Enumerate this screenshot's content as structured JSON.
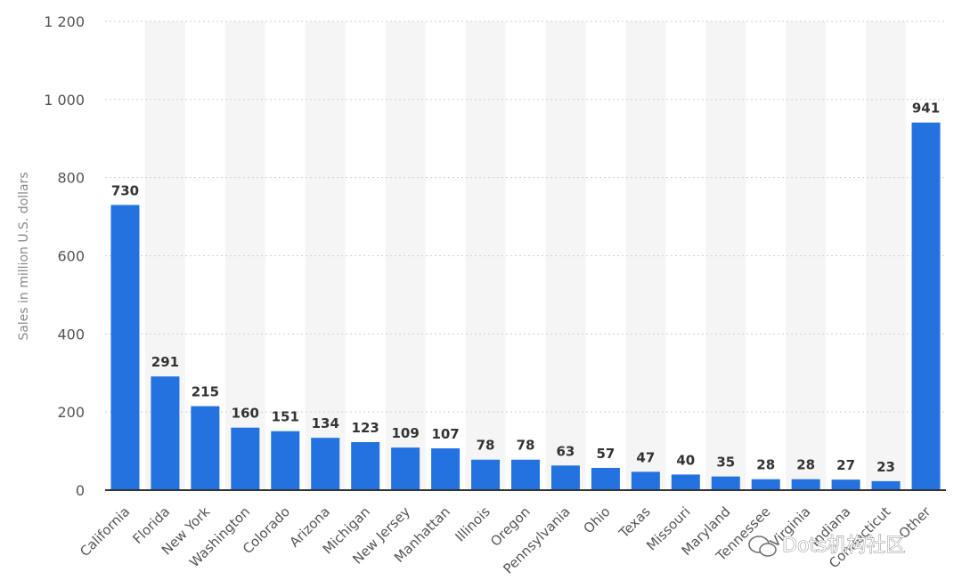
{
  "chart_data": {
    "type": "bar",
    "ylabel": "Sales in million U.S. dollars",
    "ylim": [
      0,
      1200
    ],
    "yticks": [
      0,
      200,
      400,
      600,
      800,
      1000,
      1200
    ],
    "ytick_labels": [
      "0",
      "200",
      "400",
      "600",
      "800",
      "1 000",
      "1 200"
    ],
    "grid": true,
    "categories": [
      "California",
      "Florida",
      "New York",
      "Washington",
      "Colorado",
      "Arizona",
      "Michigan",
      "New Jersey",
      "Manhattan",
      "Illinois",
      "Oregon",
      "Pennsylvania",
      "Ohio",
      "Texas",
      "Missouri",
      "Maryland",
      "Tennessee",
      "Virginia",
      "Indiana",
      "Connecticut",
      "Other"
    ],
    "values": [
      730,
      291,
      215,
      160,
      151,
      134,
      123,
      109,
      107,
      78,
      78,
      63,
      57,
      47,
      40,
      35,
      28,
      28,
      27,
      23,
      941
    ],
    "bar_color": "#2472e0"
  },
  "watermark": {
    "text": "Dots机构社区",
    "icon": "wechat-icon"
  }
}
